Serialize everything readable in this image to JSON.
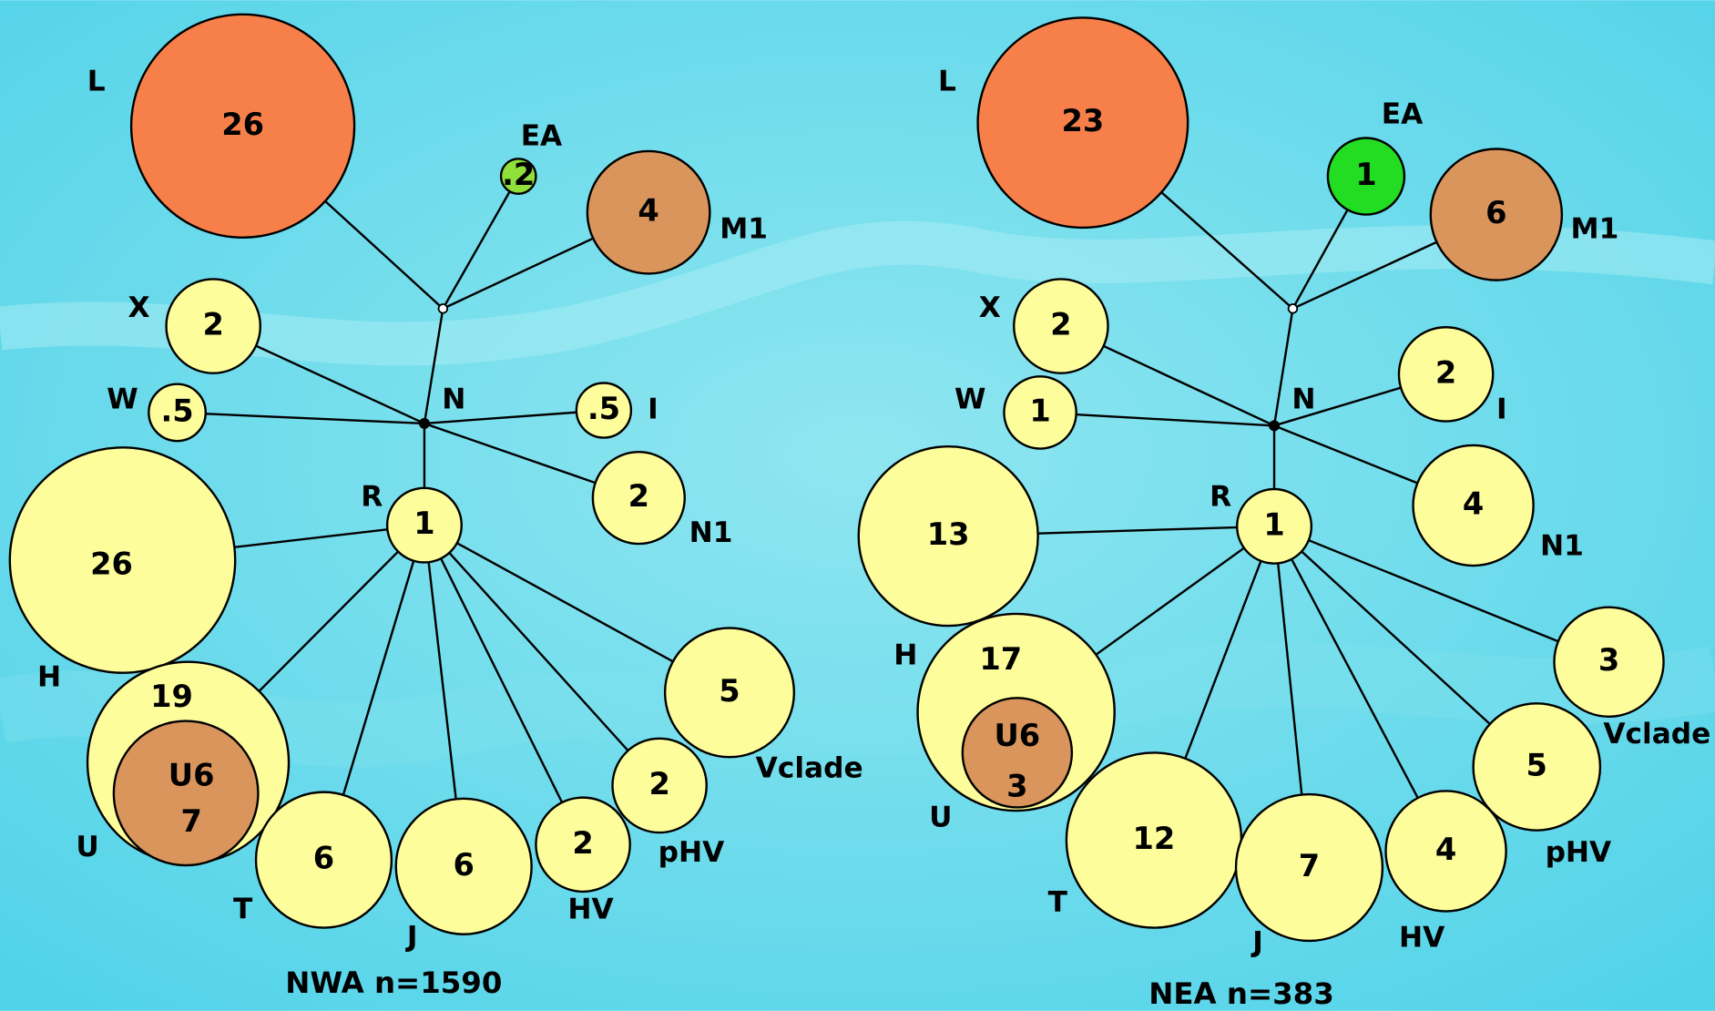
{
  "networks": [
    {
      "caption": "NWA n=1590",
      "nodes": [
        {
          "label": "L",
          "value": "26"
        },
        {
          "label": "EA",
          "value": ".2"
        },
        {
          "label": "M1",
          "value": "4"
        },
        {
          "label": "X",
          "value": "2"
        },
        {
          "label": "W",
          "value": ".5"
        },
        {
          "label": "N"
        },
        {
          "label": "I",
          "value": ".5"
        },
        {
          "label": "N1",
          "value": "2"
        },
        {
          "label": "R",
          "value": "1"
        },
        {
          "label": "H",
          "value": "26"
        },
        {
          "label": "U",
          "value": "19",
          "inner": {
            "label": "U6",
            "value": "7"
          }
        },
        {
          "label": "T",
          "value": "6"
        },
        {
          "label": "J",
          "value": "6"
        },
        {
          "label": "HV",
          "value": "2"
        },
        {
          "label": "pHV",
          "value": "2"
        },
        {
          "label": "Vclade",
          "value": "5"
        }
      ]
    },
    {
      "caption": "NEA n=383",
      "nodes": [
        {
          "label": "L",
          "value": "23"
        },
        {
          "label": "EA",
          "value": "1"
        },
        {
          "label": "M1",
          "value": "6"
        },
        {
          "label": "X",
          "value": "2"
        },
        {
          "label": "W",
          "value": "1"
        },
        {
          "label": "N"
        },
        {
          "label": "I",
          "value": "2"
        },
        {
          "label": "N1",
          "value": "4"
        },
        {
          "label": "R",
          "value": "1"
        },
        {
          "label": "H",
          "value": "13"
        },
        {
          "label": "U",
          "value": "17",
          "inner": {
            "label": "U6",
            "value": "3"
          }
        },
        {
          "label": "T",
          "value": "12"
        },
        {
          "label": "J",
          "value": "7"
        },
        {
          "label": "HV",
          "value": "4"
        },
        {
          "label": "pHV",
          "value": "5"
        },
        {
          "label": "Vclade",
          "value": "3"
        }
      ]
    }
  ]
}
